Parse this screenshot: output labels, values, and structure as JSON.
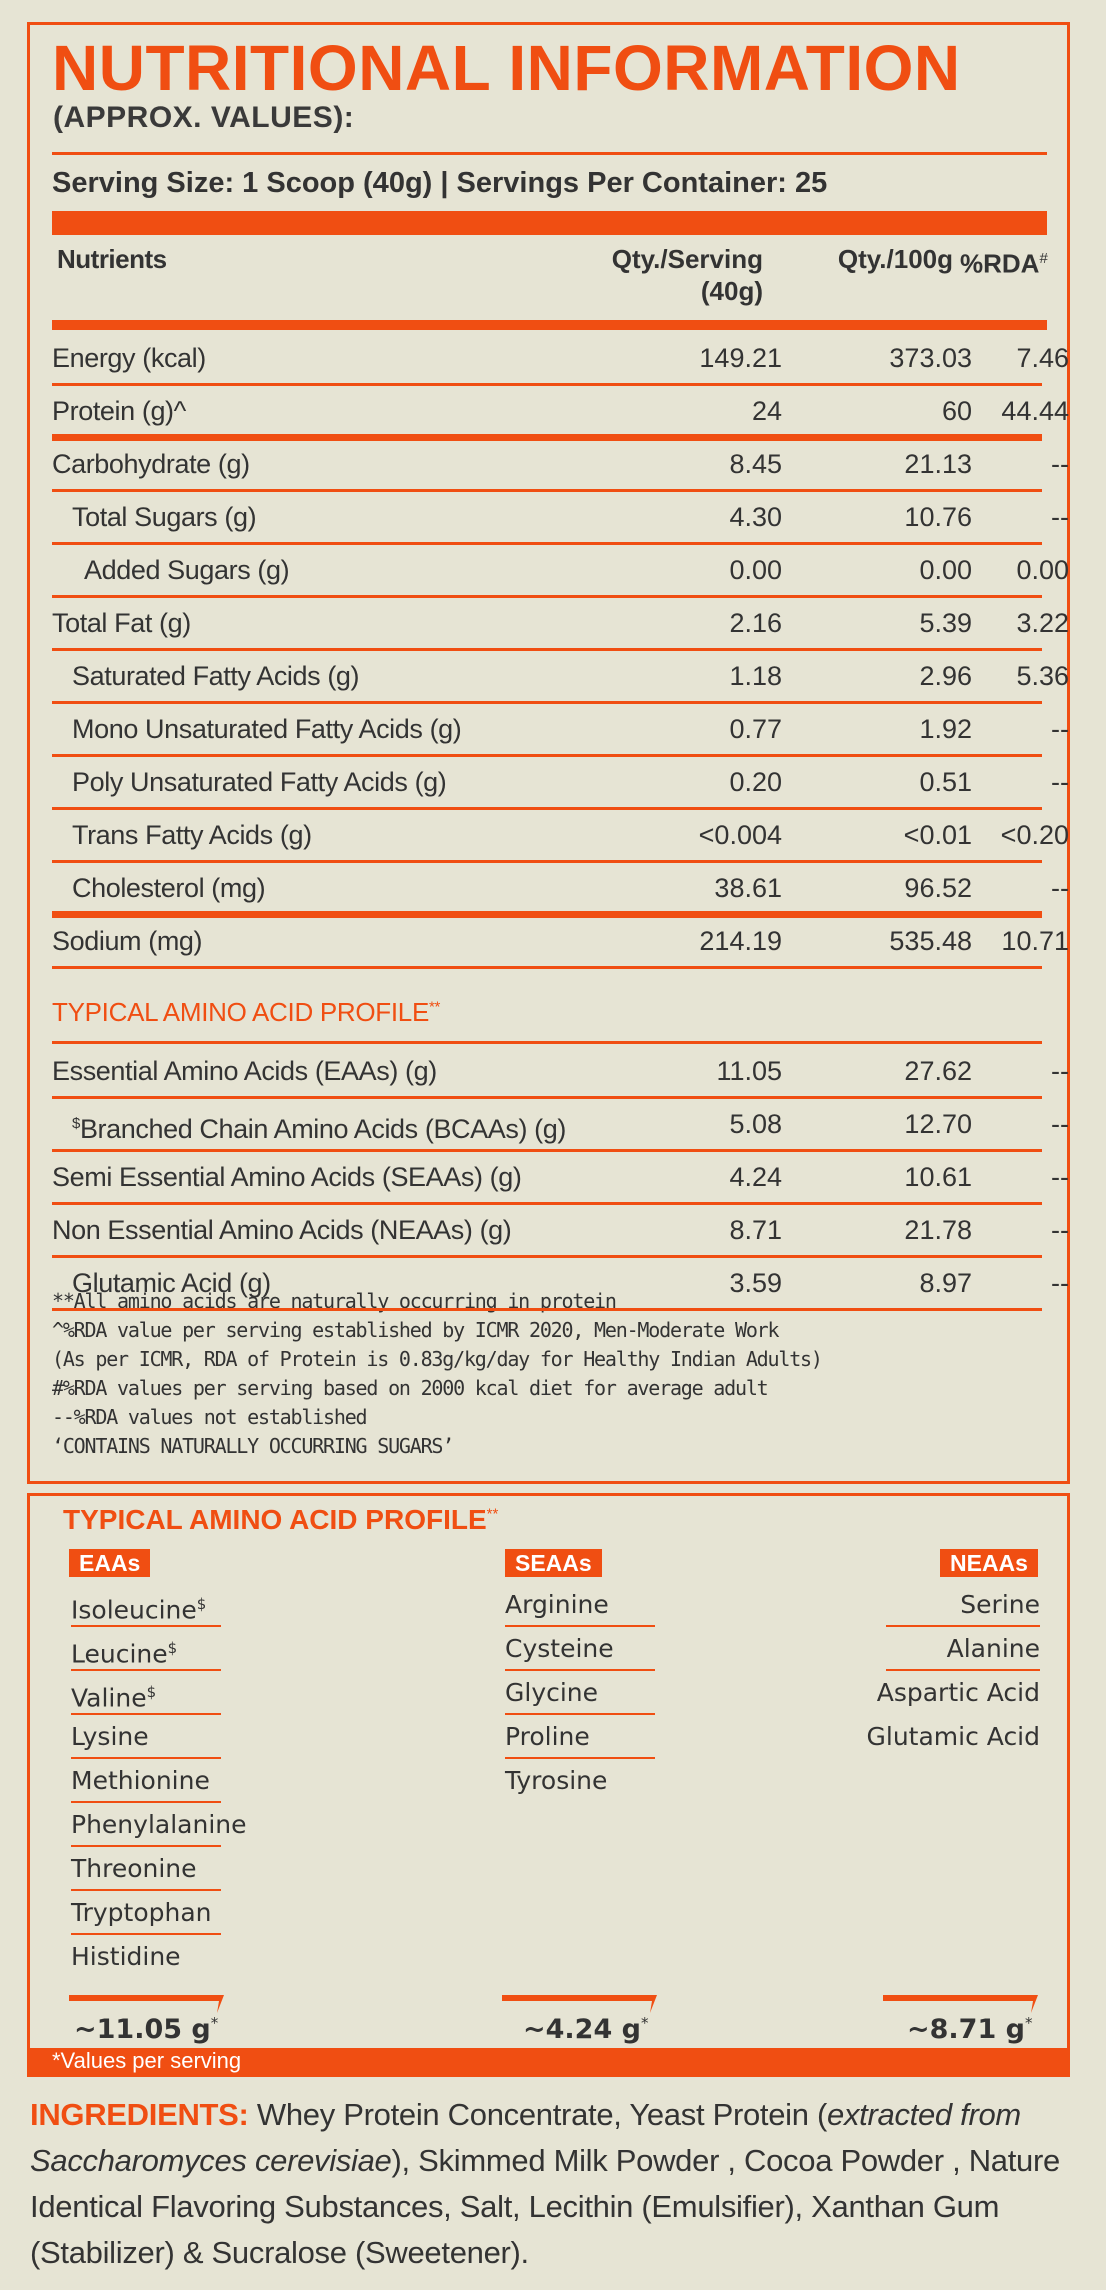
{
  "header": {
    "title": "NUTRITIONAL INFORMATION",
    "subtitle": "(APPROX. VALUES):",
    "serving": "Serving Size: 1 Scoop (40g) | Servings Per Container: 25"
  },
  "table": {
    "columns": {
      "nutrients": "Nutrients",
      "per_serving_line1": "Qty./Serving",
      "per_serving_line2": "(40g)",
      "per_100g": "Qty./100g",
      "rda": "%RDA",
      "rda_mark": "#"
    },
    "rows": [
      {
        "name": "Energy (kcal)",
        "serving": "149.21",
        "per100": "373.03",
        "rda": "7.46"
      },
      {
        "name": "Protein (g)^",
        "serving": "24",
        "per100": "60",
        "rda": "44.44"
      },
      {
        "name": "Carbohydrate (g)",
        "serving": "8.45",
        "per100": "21.13",
        "rda": "--"
      },
      {
        "name": "Total Sugars (g)",
        "serving": "4.30",
        "per100": "10.76",
        "rda": "--"
      },
      {
        "name": "Added Sugars (g)",
        "serving": "0.00",
        "per100": "0.00",
        "rda": "0.00"
      },
      {
        "name": "Total Fat (g)",
        "serving": "2.16",
        "per100": "5.39",
        "rda": "3.22"
      },
      {
        "name": "Saturated Fatty Acids (g)",
        "serving": "1.18",
        "per100": "2.96",
        "rda": "5.36"
      },
      {
        "name": "Mono Unsaturated Fatty Acids (g)",
        "serving": "0.77",
        "per100": "1.92",
        "rda": "--"
      },
      {
        "name": "Poly Unsaturated Fatty Acids (g)",
        "serving": "0.20",
        "per100": "0.51",
        "rda": "--"
      },
      {
        "name": "Trans Fatty Acids (g)",
        "serving": "<0.004",
        "per100": "<0.01",
        "rda": "<0.20"
      },
      {
        "name": "Cholesterol (mg)",
        "serving": "38.61",
        "per100": "96.52",
        "rda": "--"
      },
      {
        "name": "Sodium (mg)",
        "serving": "214.19",
        "per100": "535.48",
        "rda": "10.71"
      }
    ],
    "amino_heading": "TYPICAL AMINO ACID PROFILE",
    "amino_mark": "**",
    "amino_rows": [
      {
        "name": "Essential Amino Acids (EAAs) (g)",
        "serving": "11.05",
        "per100": "27.62",
        "rda": "--"
      },
      {
        "mark": "$",
        "name": "Branched Chain Amino Acids (BCAAs) (g)",
        "serving": "5.08",
        "per100": "12.70",
        "rda": "--"
      },
      {
        "name": "Semi Essential Amino Acids (SEAAs) (g)",
        "serving": "4.24",
        "per100": "10.61",
        "rda": "--"
      },
      {
        "name": "Non Essential Amino Acids (NEAAs) (g)",
        "serving": "8.71",
        "per100": "21.78",
        "rda": "--"
      },
      {
        "name": "Glutamic Acid (g)",
        "serving": "3.59",
        "per100": "8.97",
        "rda": "--"
      }
    ]
  },
  "footnotes": [
    "**All amino acids are naturally occurring in protein",
    "^%RDA value per serving established by ICMR 2020, Men-Moderate Work",
    "(As per ICMR, RDA of Protein is 0.83g/kg/day for Healthy Indian Adults)",
    "#%RDA values per serving based on 2000 kcal diet for average adult",
    "--%RDA values not established",
    "‘CONTAINS NATURALLY OCCURRING SUGARS’"
  ],
  "profile": {
    "heading": "TYPICAL AMINO ACID PROFILE",
    "heading_mark": "**",
    "eaas": {
      "tag": "EAAs",
      "items": [
        {
          "name": "Isoleucine",
          "mark": "$"
        },
        {
          "name": "Leucine",
          "mark": "$"
        },
        {
          "name": "Valine",
          "mark": "$"
        },
        {
          "name": "Lysine",
          "mark": ""
        },
        {
          "name": "Methionine",
          "mark": ""
        },
        {
          "name": "Phenylalanine",
          "mark": ""
        },
        {
          "name": "Threonine",
          "mark": ""
        },
        {
          "name": "Tryptophan",
          "mark": ""
        },
        {
          "name": "Histidine",
          "mark": ""
        }
      ],
      "total": "~11.05 g"
    },
    "seaas": {
      "tag": "SEAAs",
      "items": [
        "Arginine",
        "Cysteine",
        "Glycine",
        "Proline",
        "Tyrosine"
      ],
      "total": "~4.24 g"
    },
    "neaas": {
      "tag": "NEAAs",
      "items": [
        "Serine",
        "Alanine",
        "Aspartic Acid",
        "Glutamic Acid"
      ],
      "total": "~8.71 g"
    },
    "total_mark": "*",
    "per_serving_note": "*Values per serving"
  },
  "ingredients": {
    "label": "INGREDIENTS:",
    "text_before_italic": " Whey Protein Concentrate, Yeast Protein (",
    "italic": "extracted from Saccharomyces cerevisiae",
    "text_after_italic": "), Skimmed Milk Powder , Cocoa Powder , Nature Identical Flavoring Substances, Salt, Lecithin (Emulsifier), Xanthan Gum (Stabilizer) & Sucralose (Sweetener)."
  },
  "colors": {
    "accent": "#f04e12",
    "background": "#e6e4d4",
    "text": "#333333"
  }
}
